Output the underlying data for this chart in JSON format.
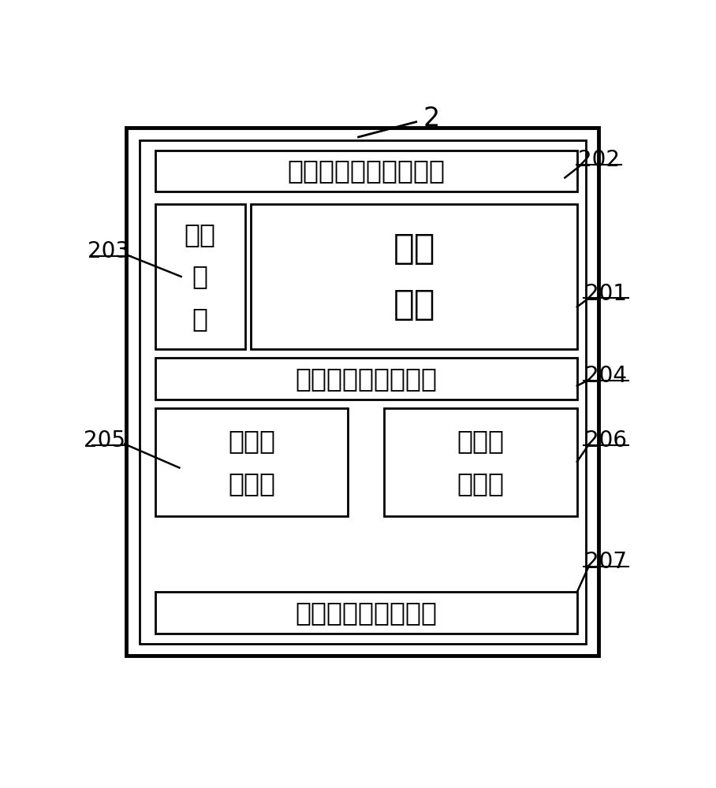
{
  "bg_color": "#ffffff",
  "label_2": "2",
  "label_201": "201",
  "label_202": "202",
  "label_203": "203",
  "label_204": "204",
  "label_205": "205",
  "label_206": "206",
  "label_207": "207",
  "box_202_text": "用户指令地址存储单元",
  "box_203_text": "时序\n单\n元",
  "box_201_text": "调度\n单元",
  "box_204_text": "用户指令预判断单元",
  "box_205_text": "结果检\n测单元",
  "box_206_text": "数据检\n验单元",
  "box_207_text": "故障定位和修复单元",
  "font_size_box": 24,
  "font_size_large_box": 32,
  "font_size_label": 20
}
